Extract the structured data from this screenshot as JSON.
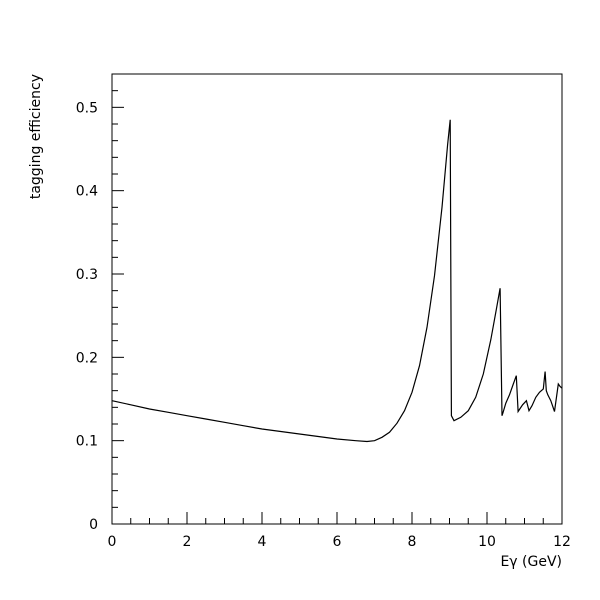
{
  "chart_data": {
    "type": "line",
    "title": "",
    "xlabel": "Eγ (GeV)",
    "ylabel": "tagging efficiency",
    "xlim": [
      0,
      12
    ],
    "ylim": [
      0,
      0.54
    ],
    "x_ticks": [
      0,
      2,
      4,
      6,
      8,
      10,
      12
    ],
    "x_tick_labels": [
      "0",
      "2",
      "4",
      "6",
      "8",
      "10",
      "12"
    ],
    "y_ticks": [
      0,
      0.1,
      0.2,
      0.3,
      0.4,
      0.5
    ],
    "y_tick_labels": [
      "0",
      "0.1",
      "0.2",
      "0.3",
      "0.4",
      "0.5"
    ],
    "grid": false,
    "legend": "none",
    "line_color": "#000000",
    "series": [
      {
        "x": [
          0,
          0.5,
          1,
          1.5,
          2,
          2.5,
          3,
          3.5,
          4,
          4.5,
          5,
          5.5,
          6,
          6.5,
          6.8,
          7.0,
          7.2,
          7.4,
          7.6,
          7.8,
          8.0,
          8.2,
          8.4,
          8.6,
          8.8,
          8.95,
          9.02,
          9.05,
          9.12,
          9.3,
          9.5,
          9.7,
          9.9,
          10.1,
          10.25,
          10.35,
          10.4,
          10.43,
          10.5,
          10.6,
          10.7,
          10.78,
          10.83,
          10.95,
          11.05,
          11.12,
          11.2,
          11.3,
          11.4,
          11.5,
          11.55,
          11.58,
          11.62,
          11.7,
          11.8,
          11.9,
          11.95,
          12.0
        ],
        "y": [
          0.148,
          0.143,
          0.138,
          0.134,
          0.13,
          0.126,
          0.122,
          0.118,
          0.114,
          0.111,
          0.108,
          0.105,
          0.102,
          0.1,
          0.099,
          0.1,
          0.104,
          0.11,
          0.121,
          0.136,
          0.158,
          0.19,
          0.236,
          0.298,
          0.38,
          0.455,
          0.485,
          0.13,
          0.124,
          0.128,
          0.136,
          0.152,
          0.18,
          0.221,
          0.258,
          0.283,
          0.13,
          0.134,
          0.145,
          0.155,
          0.168,
          0.178,
          0.135,
          0.143,
          0.148,
          0.136,
          0.142,
          0.152,
          0.158,
          0.162,
          0.183,
          0.16,
          0.155,
          0.148,
          0.135,
          0.168,
          0.165,
          0.163
        ]
      }
    ]
  }
}
